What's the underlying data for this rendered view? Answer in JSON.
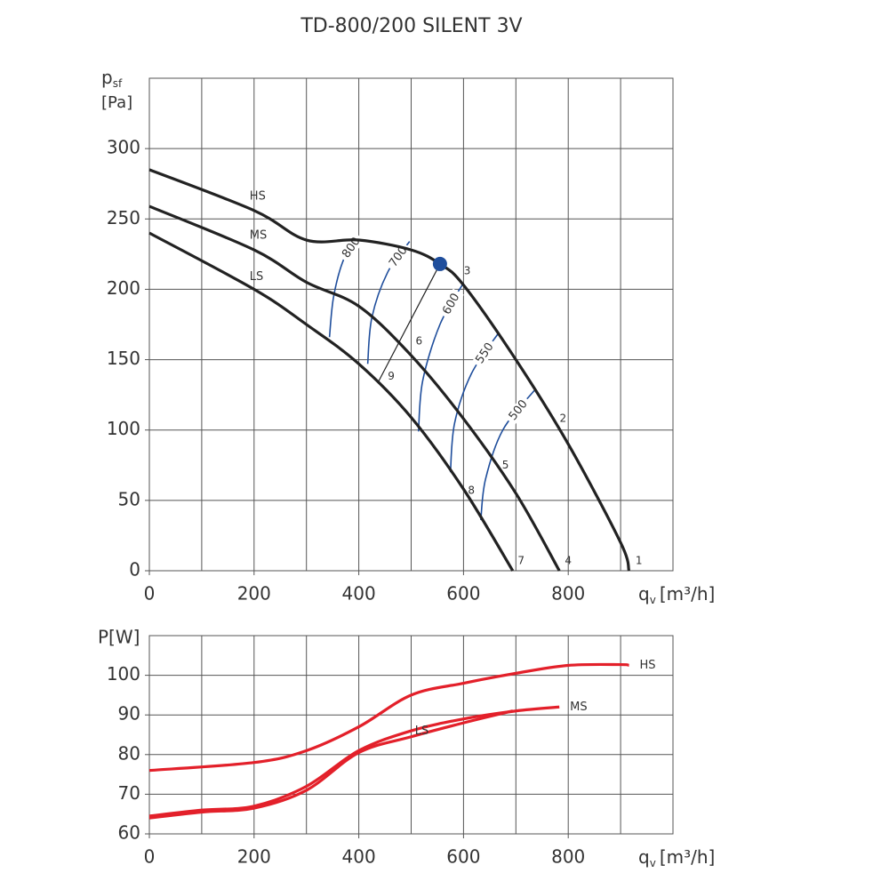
{
  "chart_data": [
    {
      "type": "line",
      "title": "TD-800/200 SILENT 3V",
      "y_label": {
        "symbol": "p",
        "subscript": "sf",
        "unit": "[Pa]"
      },
      "x_label": {
        "symbol": "q",
        "subscript": "v",
        "unit": "[m³/h]"
      },
      "xlim": [
        0,
        1000
      ],
      "ylim": [
        0,
        350
      ],
      "xticks": [
        0,
        200,
        400,
        600,
        800
      ],
      "yticks": [
        0,
        50,
        100,
        150,
        200,
        250,
        300
      ],
      "x_grid": [
        100,
        200,
        300,
        400,
        500,
        600,
        700,
        800,
        900
      ],
      "y_grid": [
        50,
        100,
        150,
        200,
        250,
        300
      ],
      "axis_color": "#333333",
      "series": [
        {
          "name": "HS",
          "color": "#222222",
          "x": [
            0,
            200,
            300,
            400,
            500,
            555,
            600,
            700,
            800,
            900,
            916
          ],
          "values": [
            285,
            256,
            235,
            235,
            228,
            218,
            203,
            150,
            90,
            20,
            0
          ]
        },
        {
          "name": "MS",
          "color": "#222222",
          "x": [
            0,
            200,
            300,
            400,
            500,
            600,
            700,
            783
          ],
          "values": [
            259,
            228,
            205,
            188,
            153,
            108,
            55,
            0
          ]
        },
        {
          "name": "LS",
          "color": "#222222",
          "x": [
            0,
            200,
            300,
            400,
            500,
            600,
            694
          ],
          "values": [
            240,
            200,
            175,
            147,
            109,
            58,
            0
          ]
        }
      ],
      "iso_lines": [
        {
          "name": "800",
          "color": "#1f4e9c",
          "x": [
            344,
            352,
            372,
            400
          ],
          "values": [
            166,
            195,
            222,
            237
          ]
        },
        {
          "name": "700",
          "color": "#1f4e9c",
          "x": [
            417,
            425,
            455,
            497
          ],
          "values": [
            147,
            180,
            212,
            234
          ]
        },
        {
          "name": "600",
          "color": "#1f4e9c",
          "x": [
            514,
            522,
            555,
            599
          ],
          "values": [
            99,
            135,
            175,
            204
          ]
        },
        {
          "name": "550",
          "color": "#1f4e9c",
          "x": [
            575,
            583,
            615,
            667
          ],
          "values": [
            70,
            105,
            140,
            169
          ]
        },
        {
          "name": "500",
          "color": "#1f4e9c",
          "x": [
            633,
            642,
            675,
            735
          ],
          "values": [
            36,
            65,
            100,
            128
          ]
        }
      ],
      "duty_line": {
        "x": [
          437,
          555
        ],
        "values": [
          134,
          218
        ]
      },
      "duty_point": {
        "x": 555,
        "y": 218,
        "color": "#1f4e9c"
      },
      "annotations": [
        {
          "text": "1",
          "x": 935,
          "y": 7
        },
        {
          "text": "2",
          "x": 790,
          "y": 108
        },
        {
          "text": "3",
          "x": 607,
          "y": 213
        },
        {
          "text": "4",
          "x": 800,
          "y": 7
        },
        {
          "text": "5",
          "x": 680,
          "y": 75
        },
        {
          "text": "6",
          "x": 515,
          "y": 163
        },
        {
          "text": "7",
          "x": 710,
          "y": 7
        },
        {
          "text": "8",
          "x": 615,
          "y": 57
        },
        {
          "text": "9",
          "x": 462,
          "y": 138
        }
      ]
    },
    {
      "type": "line",
      "y_label": "P[W]",
      "x_label": {
        "symbol": "q",
        "subscript": "v",
        "unit": "[m³/h]"
      },
      "xlim": [
        0,
        1000
      ],
      "ylim": [
        60,
        110
      ],
      "xticks": [
        0,
        200,
        400,
        600,
        800
      ],
      "yticks": [
        60,
        70,
        80,
        90,
        100
      ],
      "x_grid": [
        100,
        200,
        300,
        400,
        500,
        600,
        700,
        800,
        900
      ],
      "y_grid": [
        70,
        80,
        90,
        100
      ],
      "axis_color": "#e3202a",
      "series": [
        {
          "name": "HS",
          "color": "#e3202a",
          "x": [
            0,
            200,
            300,
            400,
            500,
            600,
            700,
            800,
            900,
            916
          ],
          "values": [
            76,
            78,
            81,
            87,
            95,
            98,
            100.5,
            102.5,
            102.7,
            102.5
          ]
        },
        {
          "name": "MS",
          "color": "#e3202a",
          "x": [
            0,
            100,
            200,
            300,
            400,
            500,
            600,
            700,
            783
          ],
          "values": [
            64.5,
            66,
            67,
            72,
            81,
            86,
            89,
            91,
            92
          ]
        },
        {
          "name": "LS",
          "color": "#e3202a",
          "x": [
            0,
            100,
            200,
            300,
            400,
            500,
            600,
            694
          ],
          "values": [
            64,
            65.5,
            66.5,
            71,
            80.5,
            84.5,
            88,
            91
          ]
        }
      ]
    }
  ]
}
